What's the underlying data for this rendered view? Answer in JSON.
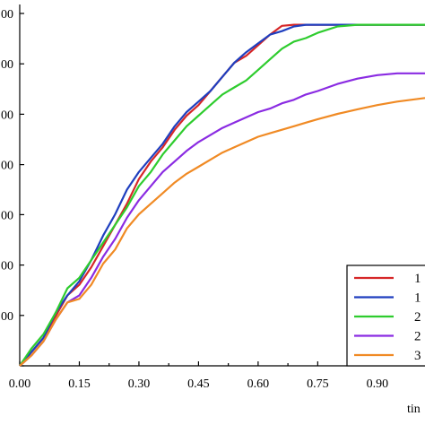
{
  "chart_data": {
    "type": "line",
    "title": "",
    "xlabel": "tin",
    "ylabel": "",
    "xlim": [
      0.0,
      1.02
    ],
    "ylim": [
      0,
      100
    ],
    "x_ticks": [
      "0.00",
      "0.15",
      "0.30",
      "0.45",
      "0.60",
      "0.75",
      "0.90"
    ],
    "x_tick_values": [
      0.0,
      0.15,
      0.3,
      0.45,
      0.6,
      0.75,
      0.9
    ],
    "y_tick_labels": [
      "00",
      "00",
      "00",
      "00",
      "00",
      "00",
      "00",
      ""
    ],
    "y_tick_values": [
      100,
      85.7,
      71.4,
      57.1,
      42.9,
      28.6,
      14.3,
      0
    ],
    "grid": false,
    "legend_position": "bottom-right",
    "series": [
      {
        "name": "1",
        "color": "#d62728",
        "x": [
          0.0,
          0.03,
          0.06,
          0.09,
          0.12,
          0.15,
          0.18,
          0.21,
          0.24,
          0.27,
          0.3,
          0.33,
          0.36,
          0.39,
          0.42,
          0.45,
          0.48,
          0.51,
          0.54,
          0.57,
          0.6,
          0.63,
          0.66,
          0.69,
          0.72,
          0.75,
          0.8,
          0.85,
          0.9,
          0.95,
          1.02
        ],
        "y": [
          0,
          4,
          8,
          14,
          20,
          23,
          28,
          34,
          40,
          46,
          53,
          58,
          62,
          67,
          71,
          74,
          78,
          82,
          86,
          88,
          91,
          94,
          96.5,
          96.8,
          96.8,
          96.8,
          96.8,
          96.8,
          96.8,
          96.8,
          96.8
        ]
      },
      {
        "name": "1",
        "color": "#1f3fbf",
        "x": [
          0.0,
          0.03,
          0.06,
          0.09,
          0.12,
          0.15,
          0.18,
          0.21,
          0.24,
          0.27,
          0.3,
          0.33,
          0.36,
          0.39,
          0.42,
          0.45,
          0.48,
          0.51,
          0.54,
          0.57,
          0.6,
          0.63,
          0.66,
          0.69,
          0.72,
          0.75,
          0.8,
          0.85,
          0.9,
          0.95,
          1.02
        ],
        "y": [
          0,
          4,
          8,
          15,
          20,
          24,
          30,
          37,
          43,
          50,
          55,
          59,
          63,
          68,
          72,
          75,
          78,
          82,
          86,
          89,
          91.5,
          94,
          95,
          96.3,
          96.8,
          96.8,
          96.8,
          96.8,
          96.8,
          96.8,
          96.8
        ]
      },
      {
        "name": "2",
        "color": "#2ecc2e",
        "x": [
          0.0,
          0.03,
          0.06,
          0.09,
          0.12,
          0.15,
          0.18,
          0.21,
          0.24,
          0.27,
          0.3,
          0.33,
          0.36,
          0.39,
          0.42,
          0.45,
          0.48,
          0.51,
          0.54,
          0.57,
          0.6,
          0.63,
          0.66,
          0.69,
          0.72,
          0.75,
          0.8,
          0.85,
          0.9,
          0.95,
          1.02
        ],
        "y": [
          0,
          5,
          9,
          15,
          22,
          25,
          30,
          35,
          40,
          45,
          51,
          55,
          60,
          64,
          68,
          71,
          74,
          77,
          79,
          81,
          84,
          87,
          90,
          92,
          93,
          94.5,
          96.3,
          96.8,
          96.8,
          96.8,
          96.8
        ]
      },
      {
        "name": "2",
        "color": "#8a2be2",
        "x": [
          0.0,
          0.03,
          0.06,
          0.09,
          0.12,
          0.15,
          0.18,
          0.21,
          0.24,
          0.27,
          0.3,
          0.33,
          0.36,
          0.39,
          0.42,
          0.45,
          0.48,
          0.51,
          0.54,
          0.57,
          0.6,
          0.63,
          0.66,
          0.69,
          0.72,
          0.75,
          0.8,
          0.85,
          0.9,
          0.95,
          1.02
        ],
        "y": [
          0,
          3,
          7,
          13,
          18,
          20,
          25,
          31,
          36,
          42,
          47,
          51,
          55,
          58,
          61,
          63.5,
          65.5,
          67.5,
          69,
          70.5,
          72,
          73,
          74.5,
          75.5,
          77,
          78,
          80,
          81.5,
          82.5,
          83,
          83
        ]
      },
      {
        "name": "3",
        "color": "#f08a24",
        "x": [
          0.0,
          0.03,
          0.06,
          0.09,
          0.12,
          0.15,
          0.18,
          0.21,
          0.24,
          0.27,
          0.3,
          0.33,
          0.36,
          0.39,
          0.42,
          0.45,
          0.48,
          0.51,
          0.54,
          0.57,
          0.6,
          0.63,
          0.66,
          0.69,
          0.72,
          0.75,
          0.8,
          0.85,
          0.9,
          0.95,
          1.02
        ],
        "y": [
          0,
          3,
          7,
          13,
          18,
          19,
          23,
          29,
          33,
          39,
          43,
          46,
          49,
          52,
          54.5,
          56.5,
          58.5,
          60.5,
          62,
          63.5,
          65,
          66,
          67,
          68,
          69,
          70,
          71.5,
          72.8,
          74,
          75,
          76
        ]
      }
    ]
  }
}
